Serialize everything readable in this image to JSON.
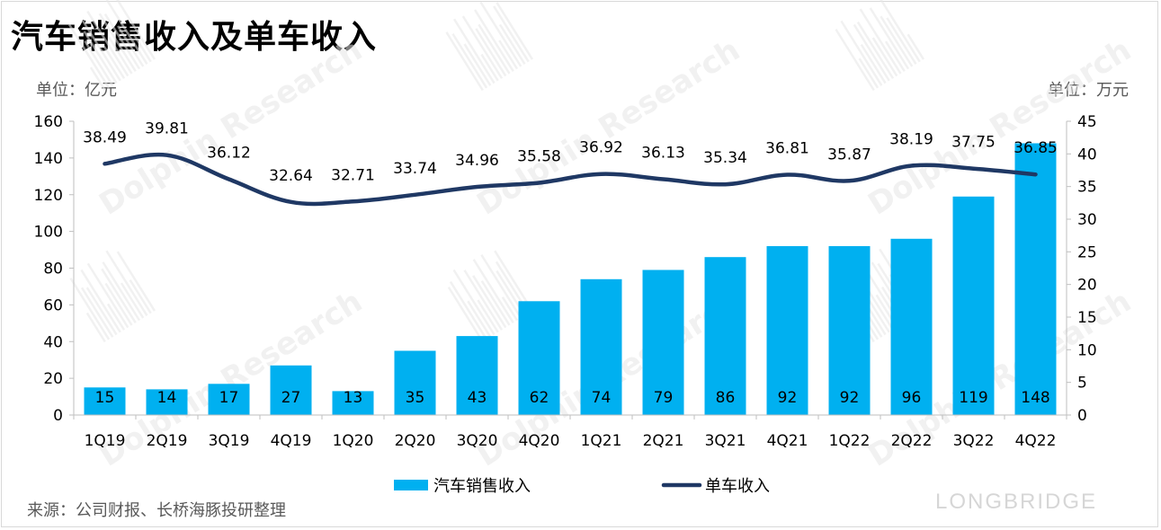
{
  "title": "汽车销售收入及单车收入",
  "unit_left": "单位：亿元",
  "unit_right": "单位：万元",
  "source": "来源：公司财报、长桥海豚投研整理",
  "brand": "LONGBRIDGE",
  "colors": {
    "bar": "#00b0f0",
    "line": "#1f3864",
    "axis": "#bfbfbf",
    "watermark": "#e6e6e6"
  },
  "chart_data": {
    "type": "bar",
    "categories": [
      "1Q19",
      "2Q19",
      "3Q19",
      "4Q19",
      "1Q20",
      "2Q20",
      "3Q20",
      "4Q20",
      "1Q21",
      "2Q21",
      "3Q21",
      "4Q21",
      "1Q22",
      "2Q22",
      "3Q22",
      "4Q22"
    ],
    "series": [
      {
        "name": "汽车销售收入",
        "type": "bar",
        "axis": "left",
        "values": [
          15,
          14,
          17,
          27,
          13,
          35,
          43,
          62,
          74,
          79,
          86,
          92,
          92,
          96,
          119,
          148
        ]
      },
      {
        "name": "单车收入",
        "type": "line",
        "axis": "right",
        "values": [
          38.49,
          39.81,
          36.12,
          32.64,
          32.71,
          33.74,
          34.96,
          35.58,
          36.92,
          36.13,
          35.34,
          36.81,
          35.87,
          38.19,
          37.75,
          36.85
        ]
      }
    ],
    "y_left": {
      "min": 0,
      "max": 160,
      "step": 20
    },
    "y_right": {
      "min": 0,
      "max": 45,
      "step": 5
    },
    "legend_position": "bottom",
    "grid": false
  }
}
